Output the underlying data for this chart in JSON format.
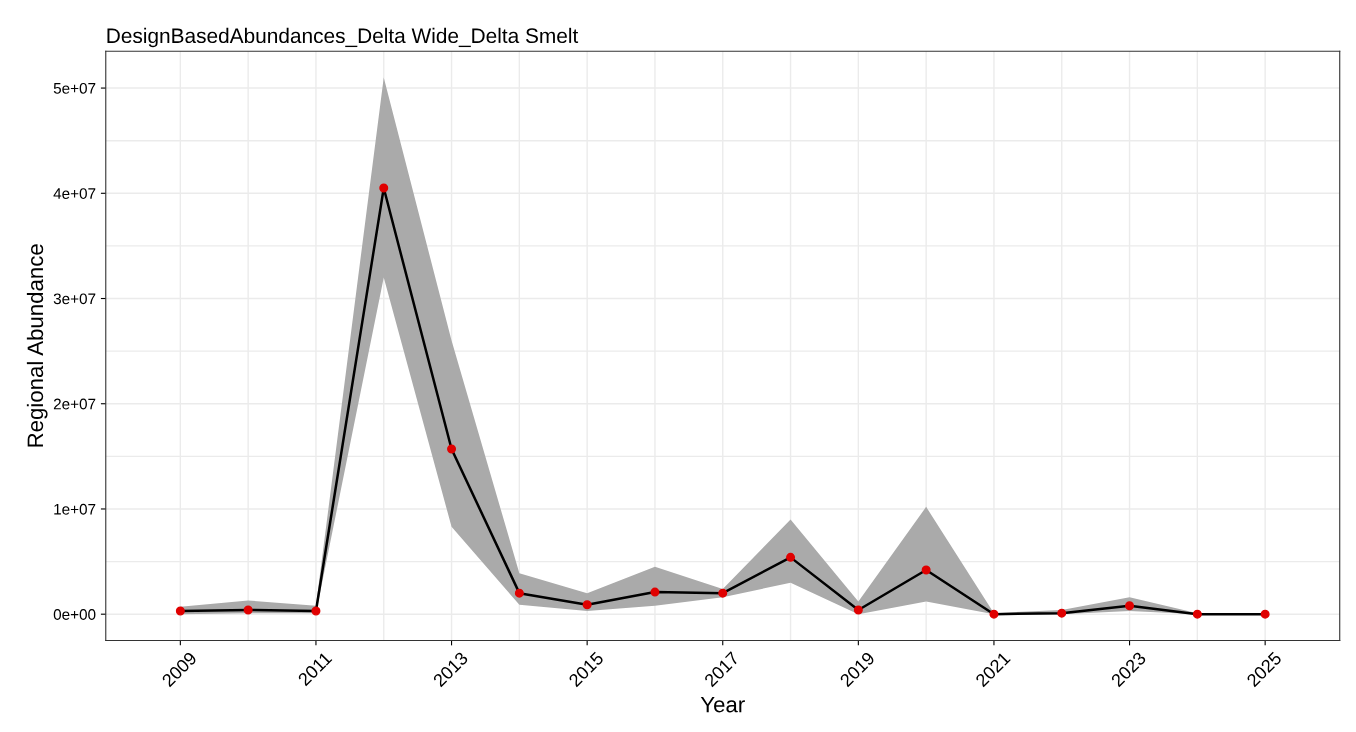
{
  "chart_data": {
    "type": "line",
    "title": "DesignBasedAbundances_Delta Wide_Delta Smelt",
    "xlabel": "Year",
    "ylabel": "Regional Abundance",
    "x": [
      2009,
      2010,
      2011,
      2012,
      2013,
      2014,
      2015,
      2016,
      2017,
      2018,
      2019,
      2020,
      2021,
      2022,
      2023,
      2024,
      2025
    ],
    "series": [
      {
        "color": "#000000",
        "values": [
          300000,
          400000,
          300000,
          40500000,
          15700000,
          2000000,
          900000,
          2100000,
          2000000,
          5400000,
          400000,
          4200000,
          0,
          100000,
          800000,
          0,
          0
        ],
        "lower": [
          0,
          100000,
          100000,
          32000000,
          8300000,
          900000,
          300000,
          800000,
          1600000,
          3000000,
          0,
          1200000,
          0,
          0,
          300000,
          0,
          0
        ],
        "upper": [
          700000,
          1300000,
          800000,
          51000000,
          26000000,
          3900000,
          2000000,
          4500000,
          2400000,
          9000000,
          1200000,
          10200000,
          100000,
          400000,
          1600000,
          100000,
          100000
        ]
      },
      {
        "type": "scatter",
        "color": "#e00000",
        "marker": "circle",
        "values": [
          300000,
          400000,
          300000,
          40500000,
          15700000,
          2000000,
          900000,
          2100000,
          2000000,
          5400000,
          400000,
          4200000,
          0,
          100000,
          800000,
          0,
          0
        ]
      }
    ],
    "xlim": [
      2007.9,
      2026.1
    ],
    "xticks": [
      2009,
      {
        "value": 2010,
        "label": null
      },
      2011,
      {
        "value": 2012,
        "label": null
      },
      2013,
      {
        "value": 2014,
        "label": null
      },
      2015,
      {
        "value": 2016,
        "label": null
      },
      2017,
      {
        "value": 2018,
        "label": null
      },
      2019,
      {
        "value": 2020,
        "label": null
      },
      2021,
      {
        "value": 2022,
        "label": null
      },
      2023,
      {
        "value": 2024,
        "label": null
      },
      2025
    ],
    "ylim": [
      -2500000,
      53500000
    ],
    "yticks": [
      {
        "value": 0,
        "label": "0e+00"
      },
      {
        "value": 5000000,
        "label": null
      },
      {
        "value": 10000000,
        "label": "1e+07"
      },
      {
        "value": 15000000,
        "label": null
      },
      {
        "value": 20000000,
        "label": "2e+07"
      },
      {
        "value": 25000000,
        "label": null
      },
      {
        "value": 30000000,
        "label": "3e+07"
      },
      {
        "value": 35000000,
        "label": null
      },
      {
        "value": 40000000,
        "label": "4e+07"
      },
      {
        "value": 45000000,
        "label": null
      },
      {
        "value": 50000000,
        "label": "5e+07"
      }
    ],
    "grid": true,
    "line_style": "solid",
    "legend": false
  }
}
